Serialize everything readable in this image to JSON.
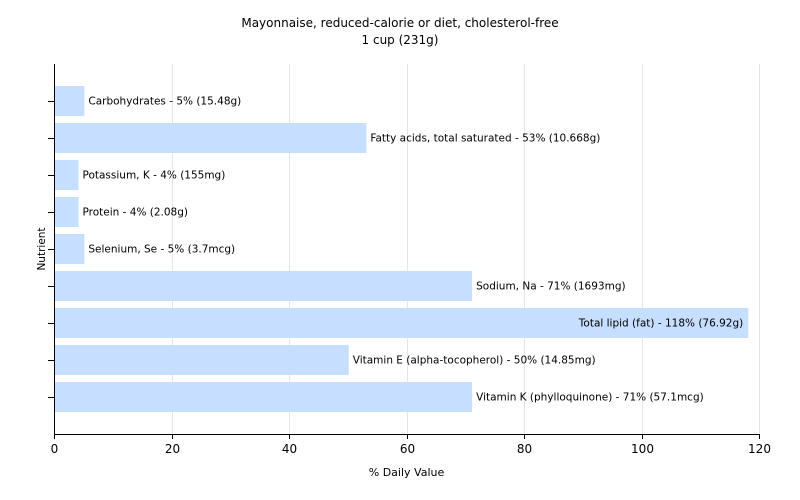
{
  "chart_data": {
    "type": "bar",
    "orientation": "horizontal",
    "title": "Mayonnaise, reduced-calorie or diet, cholesterol-free",
    "subtitle": "1 cup (231g)",
    "xlabel": "% Daily Value",
    "ylabel": "Nutrient",
    "xlim": [
      0,
      120
    ],
    "xticks": [
      0,
      20,
      40,
      60,
      80,
      100,
      120
    ],
    "grid": true,
    "bar_color": "#c6deff",
    "categories": [
      "Carbohydrates",
      "Fatty acids, total saturated",
      "Potassium, K",
      "Protein",
      "Selenium, Se",
      "Sodium, Na",
      "Total lipid (fat)",
      "Vitamin E (alpha-tocopherol)",
      "Vitamin K (phylloquinone)"
    ],
    "values": [
      5,
      53,
      4,
      4,
      5,
      71,
      118,
      50,
      71
    ],
    "bar_labels": [
      "Carbohydrates - 5% (15.48g)",
      "Fatty acids, total saturated - 53% (10.668g)",
      "Potassium, K - 4% (155mg)",
      "Protein - 4% (2.08g)",
      "Selenium, Se - 5% (3.7mcg)",
      "Sodium, Na - 71% (1693mg)",
      "Total lipid (fat) - 118% (76.92g)",
      "Vitamin E (alpha-tocopherol) - 50% (14.85mg)",
      "Vitamin K (phylloquinone) - 71% (57.1mcg)"
    ]
  }
}
